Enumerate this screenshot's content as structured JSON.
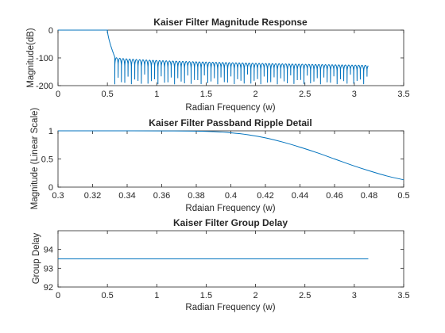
{
  "figure": {
    "background": "#ffffff",
    "series_color": "#0072bd"
  },
  "chart_data": [
    {
      "type": "line",
      "title": "Kaiser Filter Magnitude Response",
      "xlabel": "Radian Frequency (w)",
      "ylabel": "Magnitude(dB)",
      "xlim": [
        0,
        3.5
      ],
      "ylim": [
        -200,
        0
      ],
      "xticks": [
        0,
        0.5,
        1,
        1.5,
        2,
        2.5,
        3,
        3.5
      ],
      "xtick_labels": [
        "0",
        "0.5",
        "1",
        "1.5",
        "2",
        "2.5",
        "3",
        "3.5"
      ],
      "yticks": [
        -200,
        -100,
        0
      ],
      "ytick_labels": [
        "-200",
        "-100",
        "0"
      ],
      "series": [
        {
          "name": "magnitude",
          "model": "kaiser-lowpass",
          "w_range": [
            0,
            3.1416
          ],
          "passband_db": 0,
          "passband_edge": 0.5,
          "transition_end": 0.575,
          "stopband_ceiling_db_start": -97,
          "stopband_ceiling_db_end": -127,
          "null_depth_db_min": -145,
          "null_depth_db_max": -195,
          "null_spacing": 0.0336
        }
      ]
    },
    {
      "type": "line",
      "title": "Kaiser Filter Passband Ripple Detail",
      "xlabel": "Rdaian Frequency (w)",
      "ylabel": "Magnitude (Linear Scale)",
      "xlim": [
        0.3,
        0.5
      ],
      "ylim": [
        0,
        1
      ],
      "xticks": [
        0.3,
        0.32,
        0.34,
        0.36,
        0.38,
        0.4,
        0.42,
        0.44,
        0.46,
        0.48,
        0.5
      ],
      "xtick_labels": [
        "0.3",
        "0.32",
        "0.34",
        "0.36",
        "0.38",
        "0.4",
        "0.42",
        "0.44",
        "0.46",
        "0.48",
        "0.5"
      ],
      "yticks": [
        0,
        0.5,
        1
      ],
      "ytick_labels": [
        "0",
        "0.5",
        "1"
      ],
      "series": [
        {
          "name": "passband magnitude",
          "x": [
            0.3,
            0.32,
            0.34,
            0.36,
            0.38,
            0.39,
            0.4,
            0.41,
            0.42,
            0.43,
            0.44,
            0.45,
            0.46,
            0.47,
            0.48,
            0.49,
            0.5
          ],
          "y": [
            1.0,
            1.0,
            1.0,
            0.999,
            0.995,
            0.985,
            0.965,
            0.93,
            0.875,
            0.8,
            0.71,
            0.61,
            0.5,
            0.39,
            0.29,
            0.2,
            0.13
          ]
        }
      ]
    },
    {
      "type": "line",
      "title": "Kaiser Filter Group Delay",
      "xlabel": "Radian Frequency (w)",
      "ylabel": "Group Delay",
      "xlim": [
        0,
        3.5
      ],
      "ylim": [
        92,
        95
      ],
      "xticks": [
        0,
        0.5,
        1,
        1.5,
        2,
        2.5,
        3,
        3.5
      ],
      "xtick_labels": [
        "0",
        "0.5",
        "1",
        "1.5",
        "2",
        "2.5",
        "3",
        "3.5"
      ],
      "yticks": [
        92,
        93,
        94
      ],
      "ytick_labels": [
        "92",
        "93",
        "94"
      ],
      "series": [
        {
          "name": "group delay",
          "x": [
            0,
            3.1416
          ],
          "y": [
            93.5,
            93.5
          ]
        }
      ]
    }
  ]
}
